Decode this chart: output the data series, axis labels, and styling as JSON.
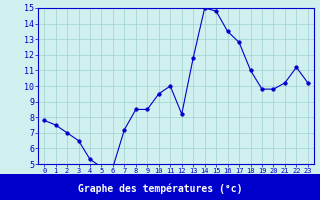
{
  "x": [
    0,
    1,
    2,
    3,
    4,
    5,
    6,
    7,
    8,
    9,
    10,
    11,
    12,
    13,
    14,
    15,
    16,
    17,
    18,
    19,
    20,
    21,
    22,
    23
  ],
  "y": [
    7.8,
    7.5,
    7.0,
    6.5,
    5.3,
    4.8,
    4.8,
    7.2,
    8.5,
    8.5,
    9.5,
    10.0,
    8.2,
    11.8,
    15.0,
    14.8,
    13.5,
    12.8,
    11.0,
    9.8,
    9.8,
    10.2,
    11.2,
    10.2
  ],
  "xlabel": "Graphe des températures (°c)",
  "ylim": [
    5,
    15
  ],
  "yticks": [
    5,
    6,
    7,
    8,
    9,
    10,
    11,
    12,
    13,
    14,
    15
  ],
  "xticks": [
    0,
    1,
    2,
    3,
    4,
    5,
    6,
    7,
    8,
    9,
    10,
    11,
    12,
    13,
    14,
    15,
    16,
    17,
    18,
    19,
    20,
    21,
    22,
    23
  ],
  "line_color": "#0000cc",
  "marker": "o",
  "marker_size": 2.5,
  "bg_color": "#d0f0f0",
  "grid_color": "#a0d0d0",
  "xlabel_color": "#ffffff",
  "xlabel_bg": "#0000cc",
  "tick_color": "#0000cc",
  "spine_color": "#0000cc"
}
